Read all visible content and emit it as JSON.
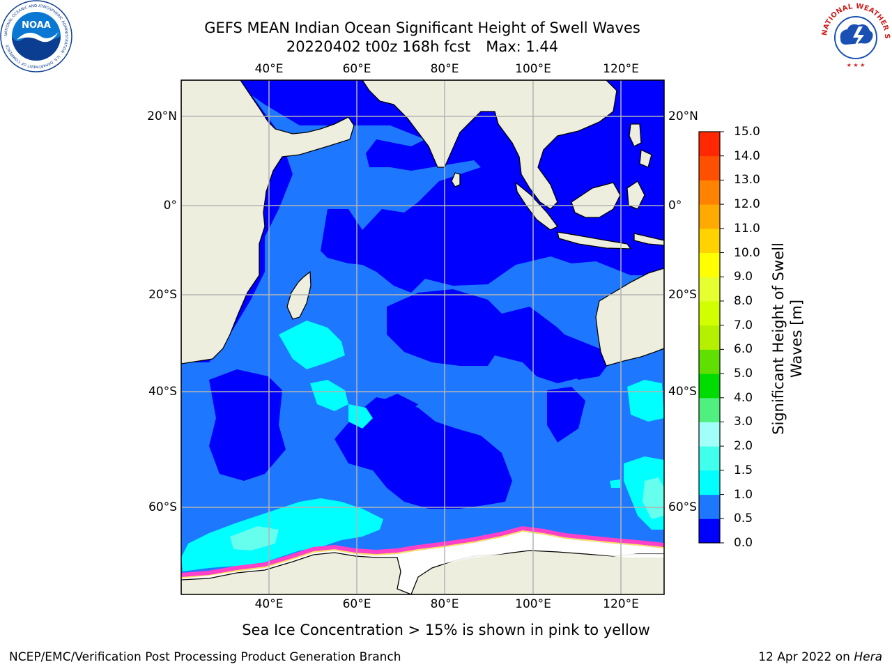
{
  "title": {
    "line1": "GEFS MEAN Indian Ocean Significant Height of Swell Waves",
    "run": "20220402 t00z 168h fcst",
    "max": "Max: 1.44"
  },
  "logos": {
    "left": "noaa-logo",
    "left_text": "NOAA",
    "left_ring_text": "NATIONAL OCEANIC AND ATMOSPHERIC ADMINISTRATION · U.S. DEPARTMENT OF COMMERCE",
    "right": "national-weather-service-logo",
    "right_ring_text": "NATIONAL WEATHER SERVICE"
  },
  "map": {
    "region": "Indian Ocean",
    "lon_ticks": [
      "40°E",
      "60°E",
      "80°E",
      "100°E",
      "120°E"
    ],
    "lat_ticks": [
      "20°N",
      "0°",
      "20°S",
      "40°S",
      "60°S"
    ],
    "lon_range": [
      20,
      130
    ],
    "lat_range": [
      -73,
      28
    ],
    "grid": true,
    "max_value": 1.44
  },
  "colorbar": {
    "title_line1": "Significant Height of Swell",
    "title_line2": "Waves [m]",
    "labels": [
      "15.0",
      "14.0",
      "13.0",
      "12.0",
      "11.0",
      "10.0",
      "9.0",
      "8.0",
      "7.0",
      "6.0",
      "5.0",
      "4.0",
      "3.0",
      "2.0",
      "1.5",
      "1.0",
      "0.5",
      "0.0"
    ],
    "bins": [
      {
        "from": 0.0,
        "to": 0.5,
        "color": "#0000ff"
      },
      {
        "from": 0.5,
        "to": 1.0,
        "color": "#1e78ff"
      },
      {
        "from": 1.0,
        "to": 1.5,
        "color": "#00ffff"
      },
      {
        "from": 1.5,
        "to": 2.0,
        "color": "#40ffec"
      },
      {
        "from": 2.0,
        "to": 3.0,
        "color": "#a0fff8"
      },
      {
        "from": 3.0,
        "to": 4.0,
        "color": "#50f080"
      },
      {
        "from": 4.0,
        "to": 5.0,
        "color": "#00dc00"
      },
      {
        "from": 5.0,
        "to": 6.0,
        "color": "#60e000"
      },
      {
        "from": 6.0,
        "to": 7.0,
        "color": "#b4f000"
      },
      {
        "from": 7.0,
        "to": 8.0,
        "color": "#d2ff00"
      },
      {
        "from": 8.0,
        "to": 9.0,
        "color": "#e6ff30"
      },
      {
        "from": 9.0,
        "to": 10.0,
        "color": "#ffff00"
      },
      {
        "from": 10.0,
        "to": 11.0,
        "color": "#ffd200"
      },
      {
        "from": 11.0,
        "to": 12.0,
        "color": "#ffaa00"
      },
      {
        "from": 12.0,
        "to": 13.0,
        "color": "#ff8200"
      },
      {
        "from": 13.0,
        "to": 14.0,
        "color": "#ff5000"
      },
      {
        "from": 14.0,
        "to": 15.0,
        "color": "#ff2800"
      }
    ]
  },
  "colors": {
    "land": "#eeeede",
    "sea_ice": "#ffffff",
    "ice_edge": [
      "#ff40c8",
      "#ffe060"
    ],
    "grid": "#b4b4b4"
  },
  "subcaption": "Sea Ice Concentration > 15% is shown in pink to yellow",
  "footer": {
    "left": "NCEP/EMC/Verification Post Processing Product Generation Branch",
    "right_prefix": "12 Apr 2022 on ",
    "right_machine": "Hera"
  }
}
